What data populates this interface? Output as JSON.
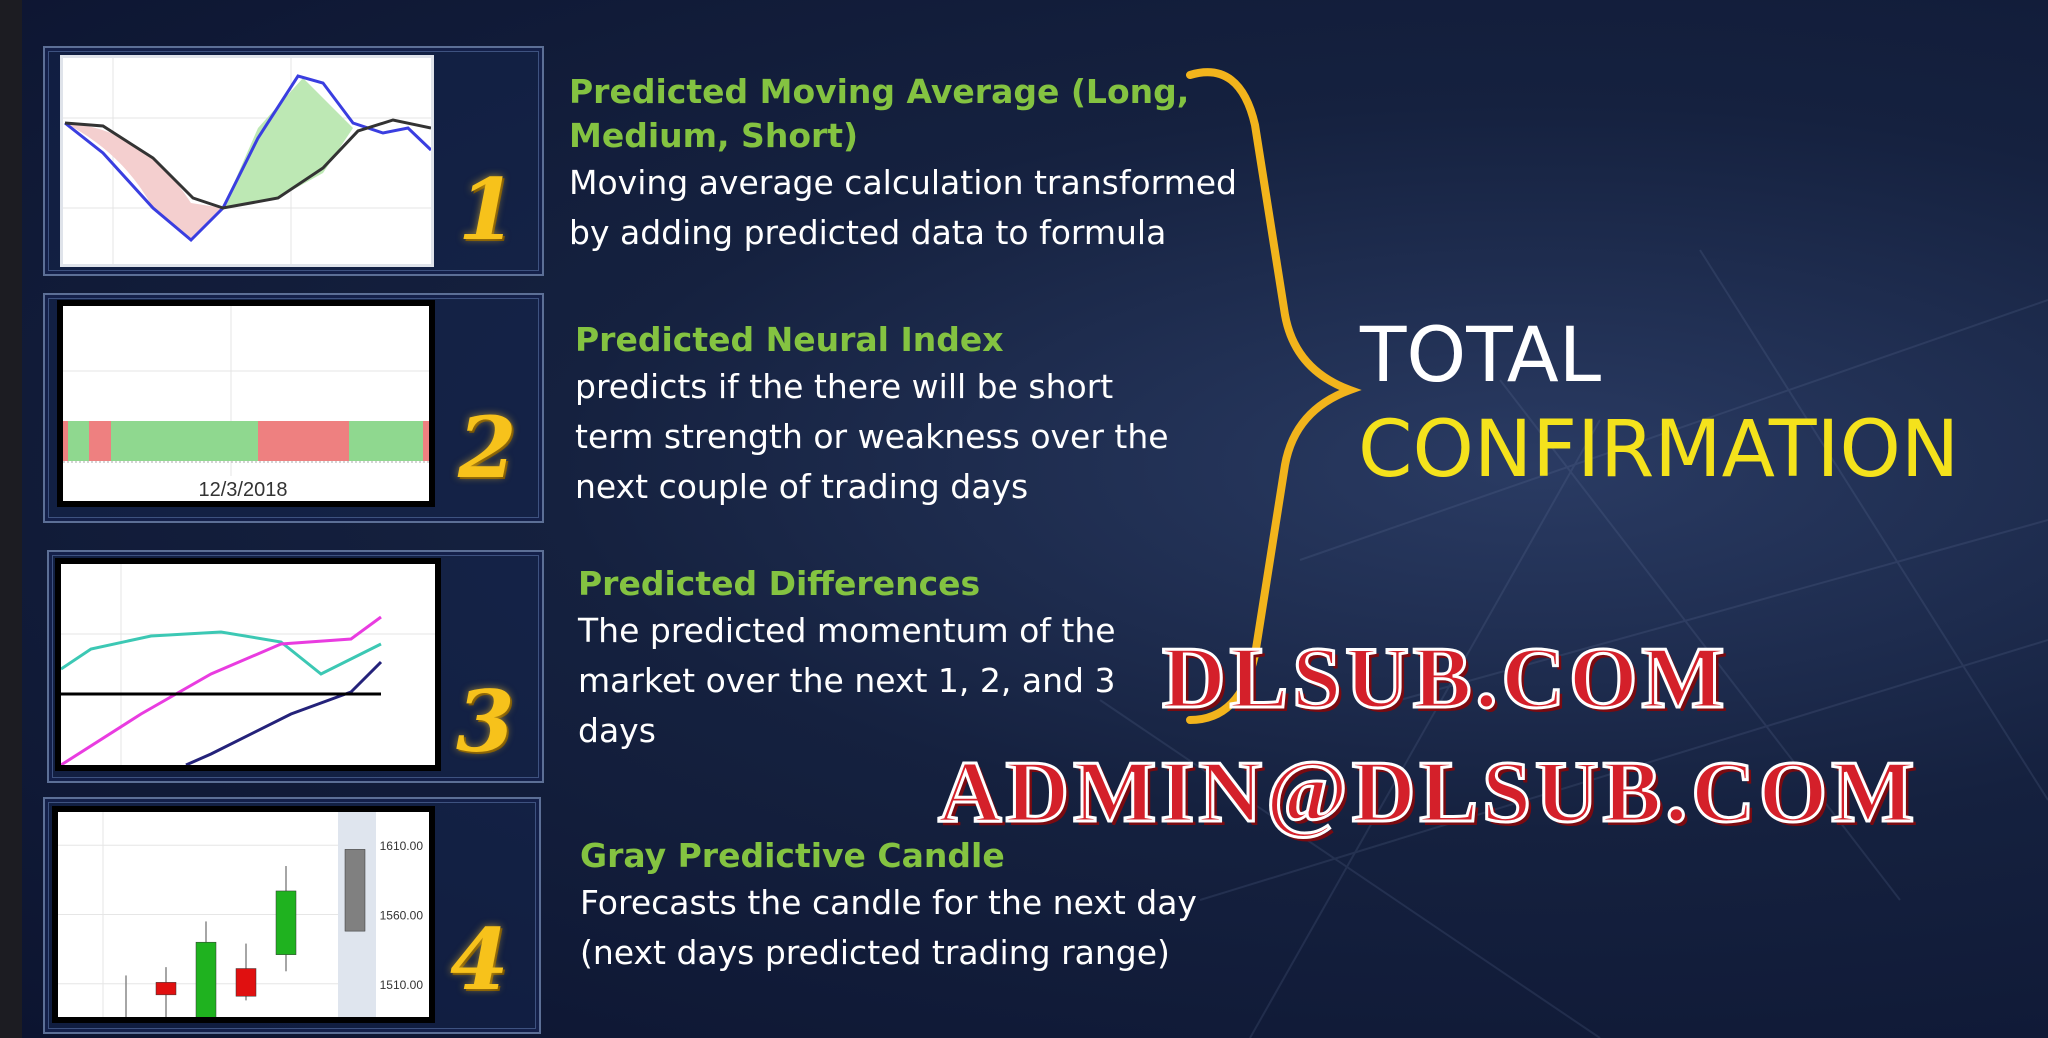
{
  "items": [
    {
      "number": "1",
      "title": "Predicted Moving Average (Long, Medium, Short)",
      "title_lines": [
        "Predicted Moving Average (Long,",
        "Medium, Short)"
      ],
      "body_lines": [
        "Moving average calculation transformed",
        "by adding predicted data to formula"
      ]
    },
    {
      "number": "2",
      "title": "Predicted Neural Index",
      "body_lines": [
        "predicts if the there will be short",
        "term strength or weakness over the",
        "next couple of trading days"
      ],
      "chart_label": "12/3/2018"
    },
    {
      "number": "3",
      "title": "Predicted Differences",
      "body_lines": [
        "The predicted momentum of the",
        "market over the next 1, 2, and 3",
        "days"
      ]
    },
    {
      "number": "4",
      "title": "Gray Predictive Candle",
      "body_lines": [
        "Forecasts the candle for the next day",
        "(next days predicted trading range)"
      ]
    }
  ],
  "summary": {
    "line1": "TOTAL",
    "line2": "CONFIRMATION"
  },
  "watermark": {
    "line1": "DLSUB.COM",
    "line2": "ADMIN@DLSUB.COM"
  },
  "colors": {
    "title": "#84c341",
    "number": "#f7c21b",
    "confirmation": "#f4e21c",
    "brace": "#f2b41c",
    "bullish": "#1fb21f",
    "bearish": "#e01010",
    "predicted": "#808080"
  },
  "chart_data": {
    "type": "candlestick",
    "ytick_labels": [
      "1610.00",
      "1560.00",
      "1510.00"
    ],
    "yticks": [
      1610,
      1560,
      1510
    ],
    "ylim": [
      1486,
      1634
    ],
    "candles": [
      {
        "open": 1490,
        "close": 1490,
        "high": 1516,
        "low": 1470,
        "kind": "neutral"
      },
      {
        "open": 1511,
        "close": 1502,
        "high": 1522,
        "low": 1486,
        "kind": "bearish"
      },
      {
        "open": 1480,
        "close": 1540,
        "high": 1555,
        "low": 1470,
        "kind": "bullish"
      },
      {
        "open": 1521,
        "close": 1501,
        "high": 1539,
        "low": 1498,
        "kind": "bearish"
      },
      {
        "open": 1531,
        "close": 1577,
        "high": 1595,
        "low": 1519,
        "kind": "bullish"
      },
      {
        "open": 1548,
        "close": 1607,
        "high": 1607,
        "low": 1548,
        "kind": "predicted"
      }
    ]
  }
}
